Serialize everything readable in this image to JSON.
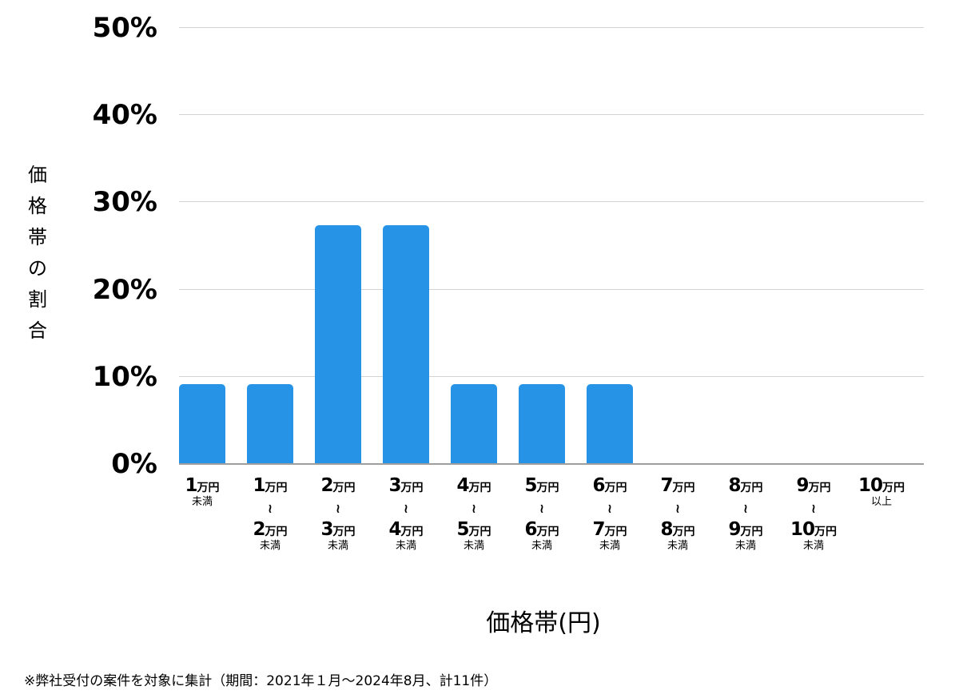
{
  "chart_data": {
    "type": "bar",
    "title": "",
    "xlabel": "価格帯(円)",
    "ylabel": "価格帯の割合",
    "ylim": [
      0,
      50
    ],
    "yticks": [
      "0%",
      "10%",
      "20%",
      "30%",
      "40%",
      "50%"
    ],
    "grid": true,
    "legend": null,
    "bar_color": "#2693e6",
    "categories": [
      "1万円未満",
      "1万円〜2万円未満",
      "2万円〜3万円未満",
      "3万円〜4万円未満",
      "4万円〜5万円未満",
      "5万円〜6万円未満",
      "6万円〜7万円未満",
      "7万円〜8万円未満",
      "8万円〜9万円未満",
      "9万円〜10万円未満",
      "10万円以上"
    ],
    "values": [
      9.09,
      9.09,
      27.27,
      27.27,
      9.09,
      9.09,
      9.09,
      0,
      0,
      0,
      0
    ],
    "value_unit": "%",
    "footnote": "※弊社受付の案件を対象に集計（期間：2021年１月〜2024年8月、計11件）"
  },
  "axis": {
    "ylabel_chars": [
      "価",
      "格",
      "帯",
      "の",
      "割",
      "合"
    ],
    "xlabel": "価格帯(円)",
    "yticks": [
      "50%",
      "40%",
      "30%",
      "20%",
      "10%",
      "0%"
    ]
  },
  "xcats": [
    {
      "from_num": "1",
      "from_unit": "万円",
      "tilde": "",
      "to_num": "",
      "to_unit": "",
      "suffix": "未満"
    },
    {
      "from_num": "1",
      "from_unit": "万円",
      "tilde": "≀",
      "to_num": "2",
      "to_unit": "万円",
      "suffix": "未満"
    },
    {
      "from_num": "2",
      "from_unit": "万円",
      "tilde": "≀",
      "to_num": "3",
      "to_unit": "万円",
      "suffix": "未満"
    },
    {
      "from_num": "3",
      "from_unit": "万円",
      "tilde": "≀",
      "to_num": "4",
      "to_unit": "万円",
      "suffix": "未満"
    },
    {
      "from_num": "4",
      "from_unit": "万円",
      "tilde": "≀",
      "to_num": "5",
      "to_unit": "万円",
      "suffix": "未満"
    },
    {
      "from_num": "5",
      "from_unit": "万円",
      "tilde": "≀",
      "to_num": "6",
      "to_unit": "万円",
      "suffix": "未満"
    },
    {
      "from_num": "6",
      "from_unit": "万円",
      "tilde": "≀",
      "to_num": "7",
      "to_unit": "万円",
      "suffix": "未満"
    },
    {
      "from_num": "7",
      "from_unit": "万円",
      "tilde": "≀",
      "to_num": "8",
      "to_unit": "万円",
      "suffix": "未満"
    },
    {
      "from_num": "8",
      "from_unit": "万円",
      "tilde": "≀",
      "to_num": "9",
      "to_unit": "万円",
      "suffix": "未満"
    },
    {
      "from_num": "9",
      "from_unit": "万円",
      "tilde": "≀",
      "to_num": "10",
      "to_unit": "万円",
      "suffix": "未満"
    },
    {
      "from_num": "10",
      "from_unit": "万円",
      "tilde": "",
      "to_num": "",
      "to_unit": "",
      "suffix": "以上"
    }
  ],
  "footnote": "※弊社受付の案件を対象に集計（期間：2021年１月〜2024年8月、計11件）"
}
